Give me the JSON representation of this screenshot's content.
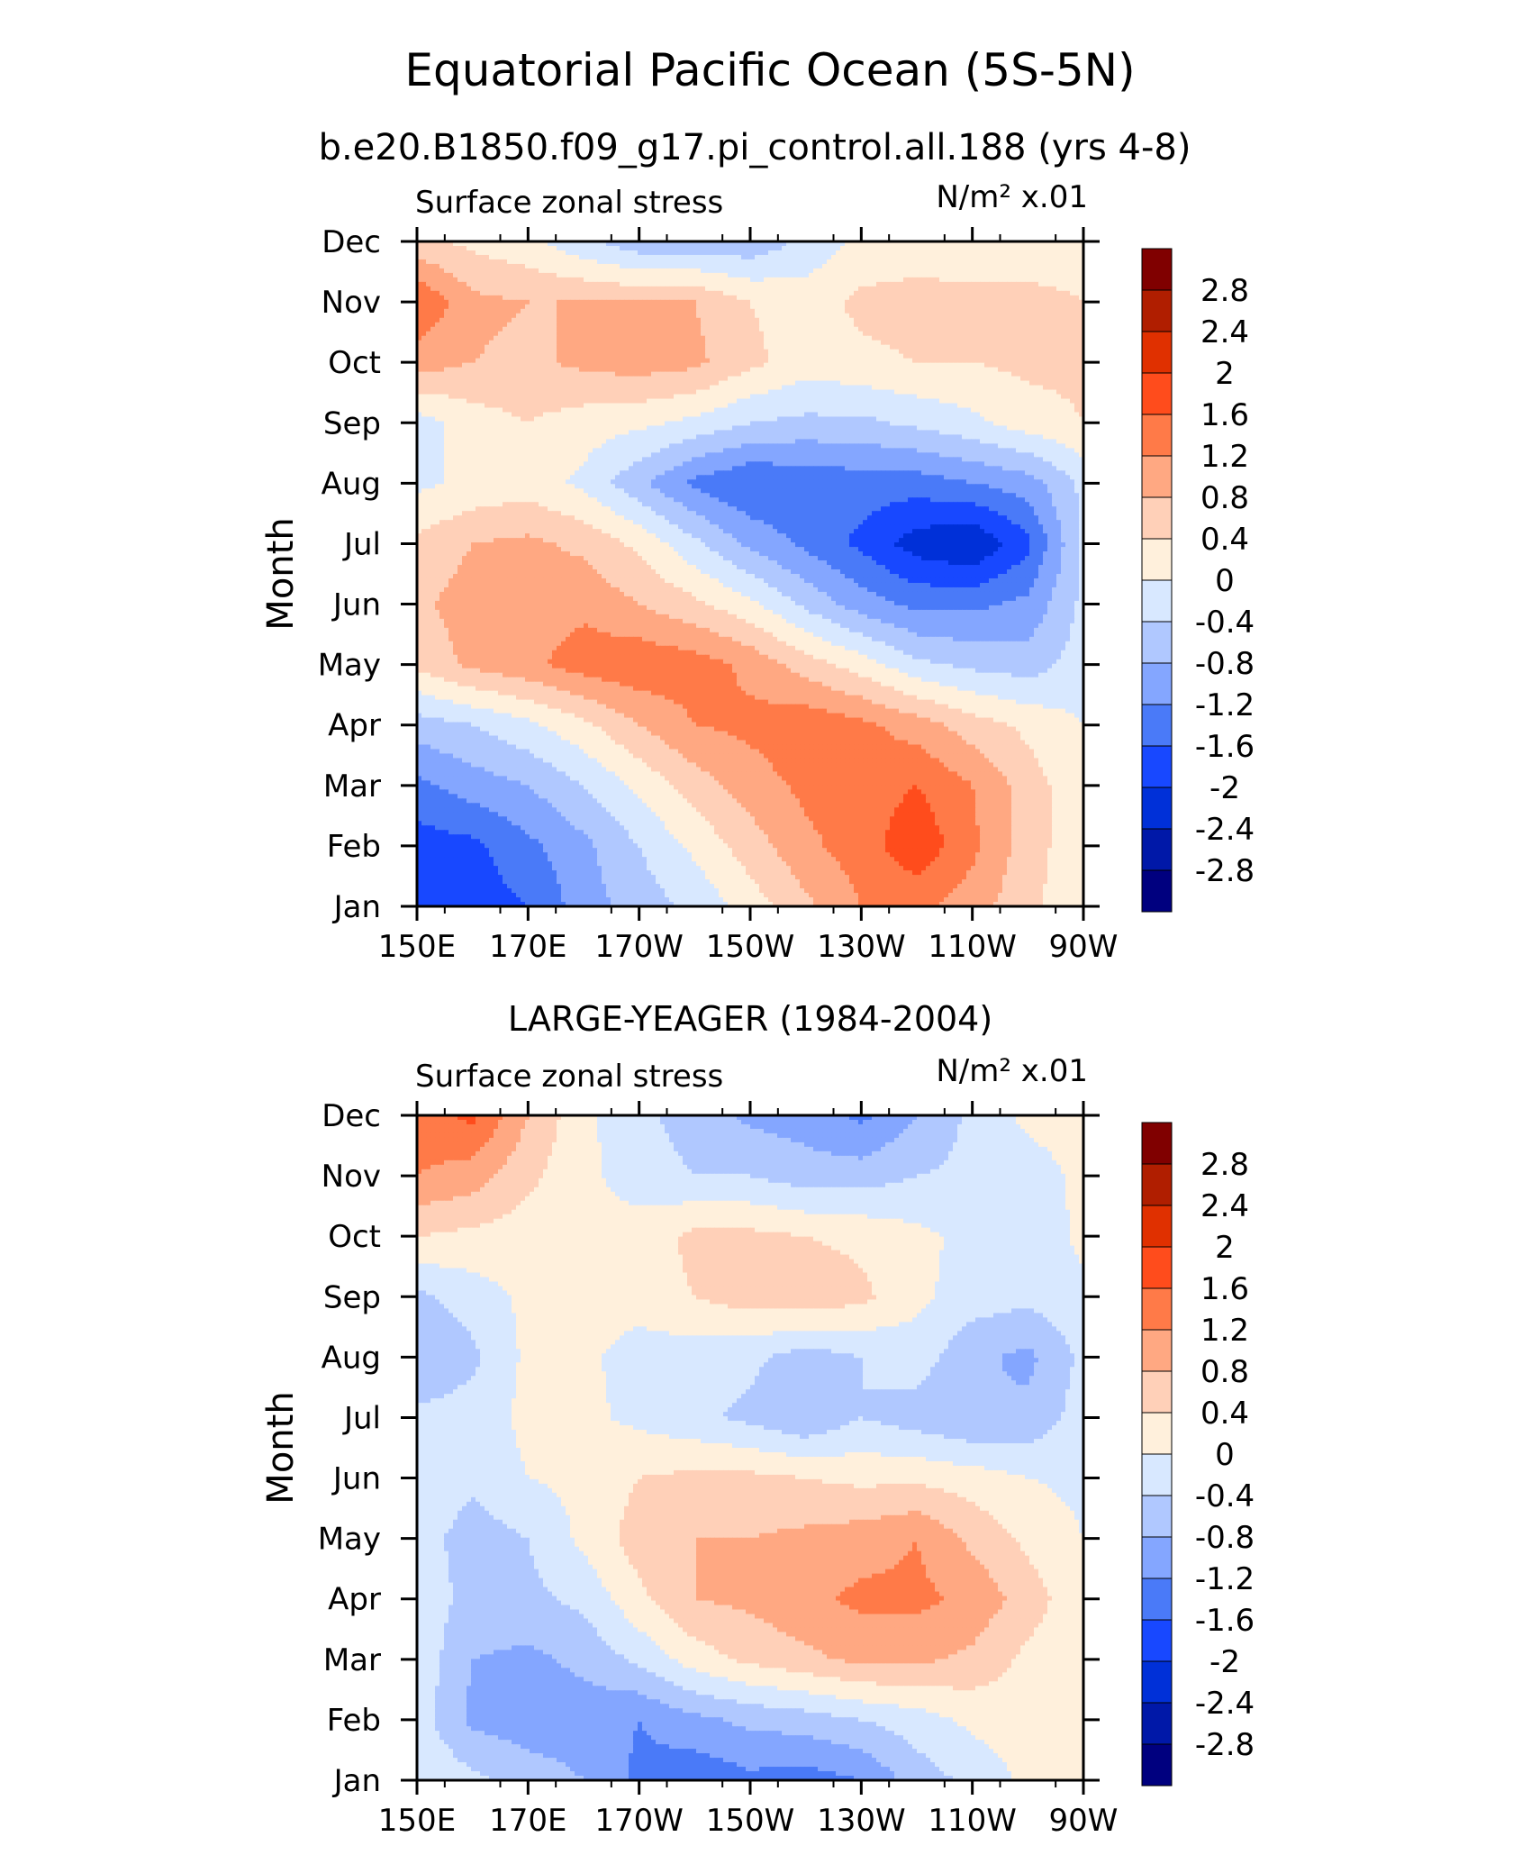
{
  "title": "Equatorial Pacific Ocean (5S-5N)",
  "subtitle": "b.e20.B1850.f09_g17.pi_control.all.188 (yrs 4-8)",
  "chart_data": [
    {
      "type": "heatmap",
      "panel_title": "",
      "left_label": "Surface zonal stress",
      "right_label": "N/m² x.01",
      "ylabel": "Month",
      "x_ticks": [
        "150E",
        "170E",
        "170W",
        "150W",
        "130W",
        "110W",
        "90W"
      ],
      "x_range": [
        150,
        270
      ],
      "y_ticks": [
        "Jan",
        "Feb",
        "Mar",
        "Apr",
        "May",
        "Jun",
        "Jul",
        "Aug",
        "Sep",
        "Oct",
        "Nov",
        "Dec"
      ],
      "colorbar_levels": [
        "2.8",
        "2.4",
        "2",
        "1.6",
        "1.2",
        "0.8",
        "0.4",
        "0",
        "-0.4",
        "-0.8",
        "-1.2",
        "-1.6",
        "-2",
        "-2.4",
        "-2.8"
      ],
      "x": [
        150,
        160,
        170,
        180,
        190,
        200,
        210,
        220,
        230,
        240,
        250,
        260,
        270
      ],
      "months": [
        "Jan",
        "Feb",
        "Mar",
        "Apr",
        "May",
        "Jun",
        "Jul",
        "Aug",
        "Sep",
        "Oct",
        "Nov",
        "Dec"
      ],
      "values": [
        [
          -1.7,
          -1.8,
          -1.6,
          -1.0,
          -0.6,
          -0.3,
          0.2,
          0.7,
          1.2,
          1.3,
          1.0,
          0.5,
          0.1
        ],
        [
          -1.8,
          -1.7,
          -1.3,
          -0.9,
          -0.4,
          0.1,
          0.6,
          1.1,
          1.4,
          1.9,
          1.3,
          0.6,
          0.1
        ],
        [
          -1.3,
          -1.0,
          -0.8,
          -0.4,
          0.1,
          0.6,
          1.0,
          1.3,
          1.4,
          1.6,
          1.2,
          0.6,
          0.1
        ],
        [
          -0.6,
          -0.4,
          -0.1,
          0.3,
          0.8,
          1.2,
          1.3,
          1.5,
          1.3,
          1.0,
          0.6,
          0.3,
          0.0
        ],
        [
          0.5,
          0.9,
          1.1,
          1.4,
          1.5,
          1.4,
          1.1,
          0.6,
          0.2,
          -0.3,
          -0.5,
          -0.6,
          -0.2
        ],
        [
          0.7,
          1.0,
          1.0,
          1.1,
          0.8,
          0.5,
          0.1,
          -0.5,
          -1.0,
          -1.3,
          -1.3,
          -1.1,
          -0.3
        ],
        [
          0.5,
          0.8,
          0.9,
          0.7,
          0.3,
          -0.3,
          -0.9,
          -1.3,
          -1.7,
          -2.2,
          -2.4,
          -1.7,
          -0.3
        ],
        [
          -0.1,
          0.1,
          0.2,
          -0.1,
          -0.7,
          -1.3,
          -1.6,
          -1.5,
          -1.4,
          -1.4,
          -1.2,
          -1.0,
          -0.3
        ],
        [
          -0.2,
          0.2,
          0.4,
          0.2,
          0.1,
          -0.1,
          -0.4,
          -0.5,
          -0.5,
          -0.3,
          -0.1,
          0.2,
          0.4
        ],
        [
          1.0,
          0.8,
          0.7,
          0.9,
          1.0,
          0.9,
          0.5,
          0.2,
          0.3,
          0.4,
          0.4,
          0.5,
          0.5
        ],
        [
          1.6,
          0.9,
          0.8,
          0.8,
          0.8,
          0.8,
          0.4,
          0.2,
          0.5,
          0.6,
          0.6,
          0.6,
          0.4
        ],
        [
          0.5,
          0.3,
          0.1,
          -0.3,
          -0.7,
          -0.7,
          -0.7,
          -0.3,
          0.1,
          0.1,
          0.0,
          0.0,
          0.1
        ]
      ]
    },
    {
      "type": "heatmap",
      "panel_title": "LARGE-YEAGER (1984-2004)",
      "left_label": "Surface zonal stress",
      "right_label": "N/m² x.01",
      "ylabel": "Month",
      "x_ticks": [
        "150E",
        "170E",
        "170W",
        "150W",
        "130W",
        "110W",
        "90W"
      ],
      "x_range": [
        150,
        270
      ],
      "y_ticks": [
        "Jan",
        "Feb",
        "Mar",
        "Apr",
        "May",
        "Jun",
        "Jul",
        "Aug",
        "Sep",
        "Oct",
        "Nov",
        "Dec"
      ],
      "colorbar_levels": [
        "2.8",
        "2.4",
        "2",
        "1.6",
        "1.2",
        "0.8",
        "0.4",
        "0",
        "-0.4",
        "-0.8",
        "-1.2",
        "-1.6",
        "-2",
        "-2.4",
        "-2.8"
      ],
      "x": [
        150,
        160,
        170,
        180,
        190,
        200,
        210,
        220,
        230,
        240,
        250,
        260,
        270
      ],
      "months": [
        "Jan",
        "Feb",
        "Mar",
        "Apr",
        "May",
        "Jun",
        "Jul",
        "Aug",
        "Sep",
        "Oct",
        "Nov",
        "Dec"
      ],
      "values": [
        [
          0.0,
          -0.3,
          -0.6,
          -0.8,
          -1.3,
          -1.5,
          -1.3,
          -1.4,
          -1.2,
          -0.6,
          -0.3,
          0.1,
          0.2
        ],
        [
          -0.2,
          -0.9,
          -1.0,
          -1.0,
          -1.2,
          -0.9,
          -0.7,
          -0.6,
          -0.4,
          -0.2,
          0.1,
          0.2,
          0.1
        ],
        [
          -0.1,
          -0.8,
          -0.9,
          -0.7,
          -0.3,
          0.2,
          0.5,
          0.7,
          0.9,
          0.9,
          0.7,
          0.3,
          0.1
        ],
        [
          -0.2,
          -0.5,
          -0.5,
          -0.3,
          0.3,
          0.8,
          0.9,
          1.1,
          1.3,
          1.3,
          1.1,
          0.6,
          0.1
        ],
        [
          -0.2,
          -0.6,
          -0.4,
          0.1,
          0.6,
          0.8,
          0.8,
          0.9,
          1.0,
          1.2,
          0.7,
          0.3,
          0.0
        ],
        [
          -0.1,
          -0.3,
          0.0,
          0.1,
          0.4,
          0.5,
          0.5,
          0.4,
          0.3,
          0.3,
          0.2,
          0.0,
          -0.1
        ],
        [
          -0.3,
          -0.2,
          0.1,
          0.1,
          -0.1,
          -0.3,
          -0.5,
          -0.8,
          -0.4,
          -0.6,
          -0.8,
          -0.7,
          -0.2
        ],
        [
          -0.8,
          -0.5,
          0.1,
          0.1,
          -0.2,
          -0.2,
          -0.3,
          -0.6,
          -0.4,
          -0.2,
          -0.7,
          -0.9,
          -0.3
        ],
        [
          -0.5,
          -0.2,
          0.1,
          0.2,
          0.2,
          0.4,
          0.6,
          0.7,
          0.5,
          0.1,
          -0.2,
          -0.3,
          -0.1
        ],
        [
          0.4,
          0.3,
          0.2,
          0.1,
          0.2,
          0.5,
          0.5,
          0.4,
          0.3,
          0.1,
          -0.1,
          -0.3,
          0.1
        ],
        [
          1.2,
          1.0,
          0.5,
          0.1,
          -0.2,
          -0.4,
          -0.4,
          -0.6,
          -0.6,
          -0.4,
          -0.3,
          -0.2,
          0.1
        ],
        [
          1.4,
          1.7,
          0.8,
          0.1,
          -0.3,
          -0.6,
          -0.9,
          -1.0,
          -1.3,
          -0.8,
          -0.3,
          0.1,
          0.2
        ]
      ]
    }
  ],
  "colors": {
    "levels_neg_to_pos": [
      "#00007f",
      "#0018a8",
      "#0030d8",
      "#1848ff",
      "#4a7af8",
      "#84a6ff",
      "#b0c8ff",
      "#d8e8ff",
      "#fff0dc",
      "#ffd0b8",
      "#ffa882",
      "#ff7a48",
      "#ff4c1c",
      "#e03000",
      "#b01e00",
      "#800000"
    ]
  }
}
